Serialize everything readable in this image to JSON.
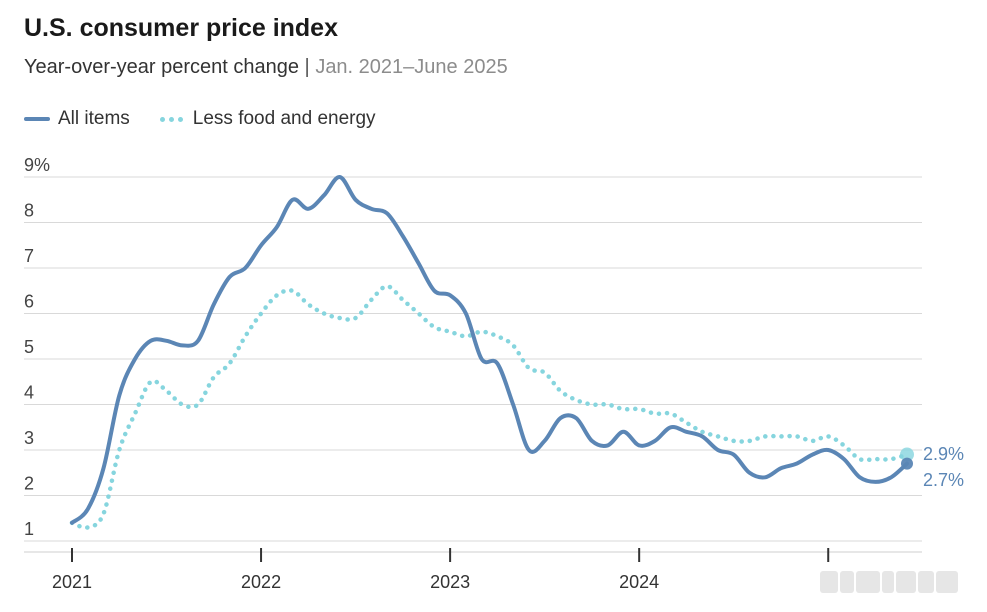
{
  "title": "U.S. consumer price index",
  "subtitle": {
    "main": "Year-over-year percent change",
    "separator": "|",
    "range": "Jan. 2021–June 2025"
  },
  "legend": {
    "all_items": "All items",
    "core": "Less food and energy"
  },
  "colors": {
    "all_items": "#5b86b5",
    "core": "#86d5de",
    "gridline": "#d9d9d9",
    "axis": "#333333"
  },
  "chart_data": {
    "type": "line",
    "ylim": [
      1,
      9
    ],
    "yticks": [
      1,
      2,
      3,
      4,
      5,
      6,
      7,
      8,
      9
    ],
    "ytick_labels": [
      "1",
      "2",
      "3",
      "4",
      "5",
      "6",
      "7",
      "8",
      "9%"
    ],
    "xticks": [
      "2021",
      "2022",
      "2023",
      "2024",
      "2025"
    ],
    "xtick_labels": [
      "2021",
      "2022",
      "2023",
      "2024",
      ""
    ],
    "x_range": [
      "2021-01",
      "2025-06"
    ],
    "x": [
      "2021-01",
      "2021-02",
      "2021-03",
      "2021-04",
      "2021-05",
      "2021-06",
      "2021-07",
      "2021-08",
      "2021-09",
      "2021-10",
      "2021-11",
      "2021-12",
      "2022-01",
      "2022-02",
      "2022-03",
      "2022-04",
      "2022-05",
      "2022-06",
      "2022-07",
      "2022-08",
      "2022-09",
      "2022-10",
      "2022-11",
      "2022-12",
      "2023-01",
      "2023-02",
      "2023-03",
      "2023-04",
      "2023-05",
      "2023-06",
      "2023-07",
      "2023-08",
      "2023-09",
      "2023-10",
      "2023-11",
      "2023-12",
      "2024-01",
      "2024-02",
      "2024-03",
      "2024-04",
      "2024-05",
      "2024-06",
      "2024-07",
      "2024-08",
      "2024-09",
      "2024-10",
      "2024-11",
      "2024-12",
      "2025-01",
      "2025-02",
      "2025-03",
      "2025-04",
      "2025-05",
      "2025-06"
    ],
    "series": [
      {
        "name": "All items",
        "style": "solid",
        "values": [
          1.4,
          1.7,
          2.6,
          4.2,
          5.0,
          5.4,
          5.4,
          5.3,
          5.4,
          6.2,
          6.8,
          7.0,
          7.5,
          7.9,
          8.5,
          8.3,
          8.6,
          9.0,
          8.5,
          8.3,
          8.2,
          7.7,
          7.1,
          6.5,
          6.4,
          6.0,
          5.0,
          4.9,
          4.0,
          3.0,
          3.2,
          3.7,
          3.7,
          3.2,
          3.1,
          3.4,
          3.1,
          3.2,
          3.5,
          3.4,
          3.3,
          3.0,
          2.9,
          2.5,
          2.4,
          2.6,
          2.7,
          2.9,
          3.0,
          2.8,
          2.4,
          2.3,
          2.4,
          2.7
        ],
        "end_label": "2.7%"
      },
      {
        "name": "Less food and energy",
        "style": "dotted",
        "values": [
          1.4,
          1.3,
          1.6,
          3.0,
          3.8,
          4.5,
          4.3,
          4.0,
          4.0,
          4.6,
          4.9,
          5.5,
          6.0,
          6.4,
          6.5,
          6.2,
          6.0,
          5.9,
          5.9,
          6.3,
          6.6,
          6.3,
          6.0,
          5.7,
          5.6,
          5.5,
          5.6,
          5.5,
          5.3,
          4.8,
          4.7,
          4.3,
          4.1,
          4.0,
          4.0,
          3.9,
          3.9,
          3.8,
          3.8,
          3.6,
          3.4,
          3.3,
          3.2,
          3.2,
          3.3,
          3.3,
          3.3,
          3.2,
          3.3,
          3.1,
          2.8,
          2.8,
          2.8,
          2.9
        ],
        "end_label": "2.9%"
      }
    ]
  }
}
